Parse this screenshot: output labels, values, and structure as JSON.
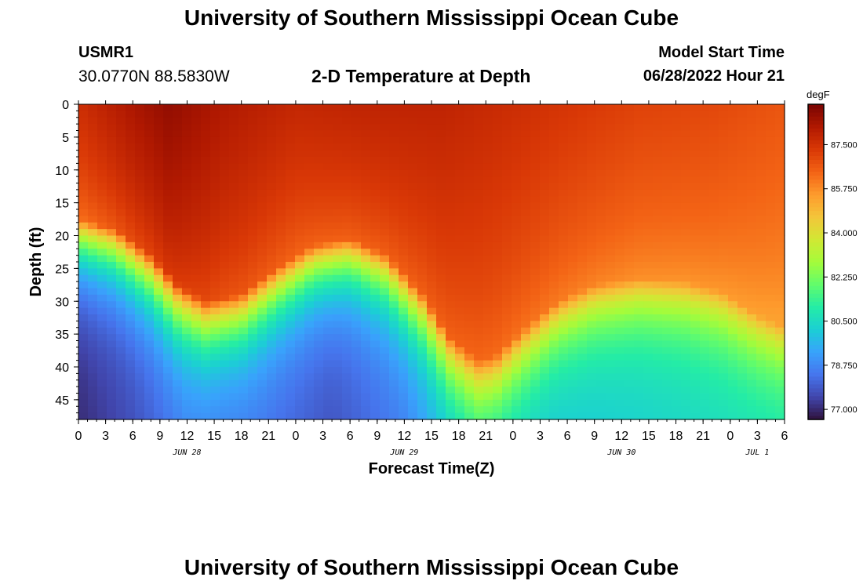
{
  "page": {
    "title_top": "University of Southern Mississippi Ocean Cube",
    "title_bottom": "University of Southern Mississippi Ocean Cube",
    "station_id": "USMR1",
    "station_location": "30.0770N  88.5830W",
    "subtitle": "2-D Temperature at Depth",
    "model_start_label": "Model Start Time",
    "model_start_value": "06/28/2022 Hour 21"
  },
  "chart_data": {
    "type": "heatmap",
    "title": "2-D Temperature at Depth",
    "xlabel": "Forecast Time(Z)",
    "ylabel": "Depth (ft)",
    "x_range_hours": [
      0,
      78
    ],
    "y_range_ft": [
      0,
      48
    ],
    "x_ticks": [
      {
        "hour": 0,
        "label": "0"
      },
      {
        "hour": 3,
        "label": "3"
      },
      {
        "hour": 6,
        "label": "6"
      },
      {
        "hour": 9,
        "label": "9"
      },
      {
        "hour": 12,
        "label": "12"
      },
      {
        "hour": 15,
        "label": "15"
      },
      {
        "hour": 18,
        "label": "18"
      },
      {
        "hour": 21,
        "label": "21"
      },
      {
        "hour": 24,
        "label": "0"
      },
      {
        "hour": 27,
        "label": "3"
      },
      {
        "hour": 30,
        "label": "6"
      },
      {
        "hour": 33,
        "label": "9"
      },
      {
        "hour": 36,
        "label": "12"
      },
      {
        "hour": 39,
        "label": "15"
      },
      {
        "hour": 42,
        "label": "18"
      },
      {
        "hour": 45,
        "label": "21"
      },
      {
        "hour": 48,
        "label": "0"
      },
      {
        "hour": 51,
        "label": "3"
      },
      {
        "hour": 54,
        "label": "6"
      },
      {
        "hour": 57,
        "label": "9"
      },
      {
        "hour": 60,
        "label": "12"
      },
      {
        "hour": 63,
        "label": "15"
      },
      {
        "hour": 66,
        "label": "18"
      },
      {
        "hour": 69,
        "label": "21"
      },
      {
        "hour": 72,
        "label": "0"
      },
      {
        "hour": 75,
        "label": "3"
      },
      {
        "hour": 78,
        "label": "6"
      }
    ],
    "date_labels": [
      {
        "hour": 12,
        "label": "JUN 28"
      },
      {
        "hour": 36,
        "label": "JUN 29"
      },
      {
        "hour": 60,
        "label": "JUN 30"
      },
      {
        "hour": 75,
        "label": "JUL 1"
      }
    ],
    "y_ticks": [
      0,
      5,
      10,
      15,
      20,
      25,
      30,
      35,
      40,
      45
    ],
    "colorbar": {
      "units": "degF",
      "range": [
        76.6,
        89.1
      ],
      "ticks": [
        77.0,
        78.75,
        80.5,
        82.25,
        84.0,
        85.75,
        87.5
      ],
      "tick_labels": [
        "77.000",
        "78.750",
        "80.500",
        "82.250",
        "84.000",
        "85.750",
        "87.500"
      ],
      "colors": [
        "#30123b",
        "#4145ab",
        "#4675ed",
        "#39a2fc",
        "#1bcfd4",
        "#24eca6",
        "#61fc6c",
        "#a4fc3b",
        "#d1e834",
        "#f3c63a",
        "#fe9b2d",
        "#f36315",
        "#d93806",
        "#b11901",
        "#7a0402"
      ]
    },
    "thermocline_depth_ft": [
      {
        "hour": 0,
        "depth": 17.5
      },
      {
        "hour": 4,
        "depth": 19
      },
      {
        "hour": 8,
        "depth": 23
      },
      {
        "hour": 11,
        "depth": 27.5
      },
      {
        "hour": 14,
        "depth": 30
      },
      {
        "hour": 18,
        "depth": 29
      },
      {
        "hour": 22,
        "depth": 25
      },
      {
        "hour": 26,
        "depth": 21.5
      },
      {
        "hour": 30,
        "depth": 20.5
      },
      {
        "hour": 34,
        "depth": 23
      },
      {
        "hour": 38,
        "depth": 29
      },
      {
        "hour": 41,
        "depth": 35.5
      },
      {
        "hour": 44,
        "depth": 39
      },
      {
        "hour": 46,
        "depth": 38.5
      },
      {
        "hour": 49,
        "depth": 34.5
      },
      {
        "hour": 53,
        "depth": 30
      },
      {
        "hour": 57,
        "depth": 27.5
      },
      {
        "hour": 62,
        "depth": 26.5
      },
      {
        "hour": 67,
        "depth": 27
      },
      {
        "hour": 71,
        "depth": 28.5
      },
      {
        "hour": 75,
        "depth": 32
      },
      {
        "hour": 78,
        "depth": 34
      }
    ],
    "surface_temp_degF": [
      {
        "hour": 0,
        "value": 87.6
      },
      {
        "hour": 6,
        "value": 88.3
      },
      {
        "hour": 10,
        "value": 88.7
      },
      {
        "hour": 16,
        "value": 88.2
      },
      {
        "hour": 24,
        "value": 87.8
      },
      {
        "hour": 32,
        "value": 87.9
      },
      {
        "hour": 40,
        "value": 87.9
      },
      {
        "hour": 46,
        "value": 87.7
      },
      {
        "hour": 54,
        "value": 87.4
      },
      {
        "hour": 62,
        "value": 87.1
      },
      {
        "hour": 70,
        "value": 87.0
      },
      {
        "hour": 78,
        "value": 86.7
      }
    ],
    "bottom_temp_degF": [
      {
        "hour": 0,
        "value": 77.0
      },
      {
        "hour": 6,
        "value": 77.6
      },
      {
        "hour": 12,
        "value": 78.5
      },
      {
        "hour": 20,
        "value": 78.3
      },
      {
        "hour": 28,
        "value": 77.7
      },
      {
        "hour": 36,
        "value": 78.5
      },
      {
        "hour": 44,
        "value": 80.3
      },
      {
        "hour": 52,
        "value": 79.9
      },
      {
        "hour": 60,
        "value": 80.1
      },
      {
        "hour": 70,
        "value": 80.4
      },
      {
        "hour": 78,
        "value": 80.6
      }
    ]
  }
}
